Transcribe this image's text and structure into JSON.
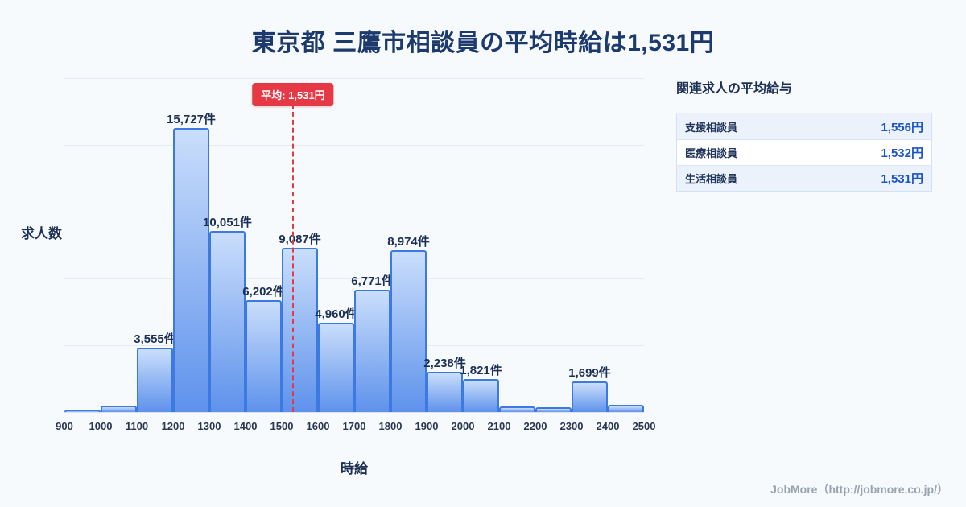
{
  "title": "東京都 三鷹市相談員の平均時給は1,531円",
  "chart_data": {
    "type": "bar",
    "x": [
      900,
      1000,
      1100,
      1200,
      1300,
      1400,
      1500,
      1600,
      1700,
      1800,
      1900,
      2000,
      2100,
      2200,
      2300,
      2400
    ],
    "values": [
      150,
      350,
      3555,
      15727,
      10051,
      6202,
      9087,
      4960,
      6771,
      8974,
      2238,
      1821,
      300,
      250,
      1699,
      400
    ],
    "labels": [
      "",
      "",
      "3,555件",
      "15,727件",
      "10,051件",
      "6,202件",
      "9,087件",
      "4,960件",
      "6,771件",
      "8,974件",
      "2,238件",
      "1,821件",
      "",
      "",
      "1,699件",
      ""
    ],
    "x_ticks": [
      "900",
      "1000",
      "1100",
      "1200",
      "1300",
      "1400",
      "1500",
      "1600",
      "1700",
      "1800",
      "1900",
      "2000",
      "2100",
      "2200",
      "2300",
      "2400",
      "2500"
    ],
    "xlim": [
      900,
      2500
    ],
    "ylim": [
      0,
      18500
    ],
    "xlabel": "時給",
    "ylabel": "求人数",
    "grid": "horizontal",
    "mean": {
      "value": 1531,
      "label": "平均: 1,531円"
    }
  },
  "side_panel": {
    "title": "関連求人の平均給与",
    "rows": [
      {
        "label": "支援相談員",
        "value": "1,556円"
      },
      {
        "label": "医療相談員",
        "value": "1,532円"
      },
      {
        "label": "生活相談員",
        "value": "1,531円"
      }
    ]
  },
  "footer": {
    "credit": "JobMore（http://jobmore.co.jp/）"
  },
  "colors": {
    "accent_red": "#e53946",
    "bar_top": "#cadefb",
    "bar_bottom": "#5e92ec",
    "bar_border": "#3c79e0",
    "value_blue": "#1b55c8",
    "title_navy": "#1d3a6e"
  }
}
